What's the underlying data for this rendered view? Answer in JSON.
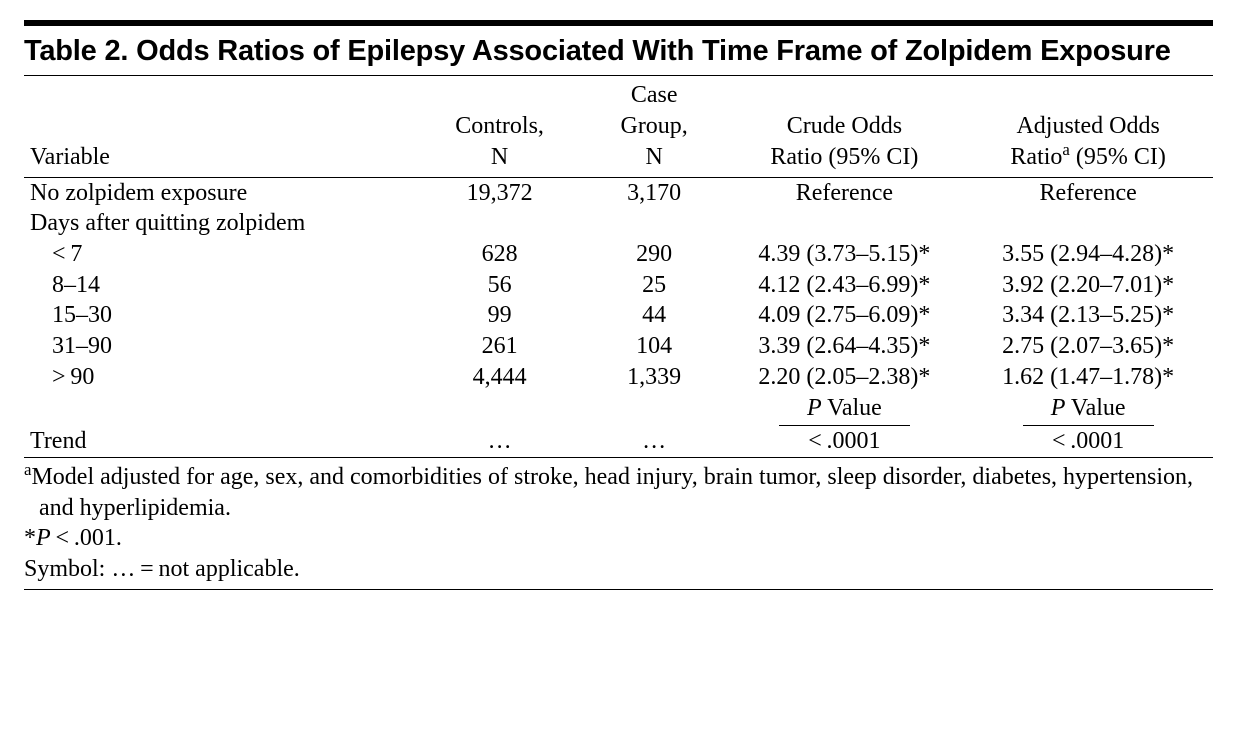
{
  "title": "Table 2. Odds Ratios of Epilepsy Associated With Time Frame of Zolpidem Exposure",
  "columns": {
    "c0": "Variable",
    "c1_line1": "Controls,",
    "c1_line2": "N",
    "c2_line1": "Case",
    "c2_line2": "Group,",
    "c2_line3": "N",
    "c3_line1": "Crude Odds",
    "c3_line2": "Ratio (95% CI)",
    "c4_line1": "Adjusted Odds",
    "c4_line2_prefix": "Ratio",
    "c4_line2_sup": "a",
    "c4_line2_suffix": " (95% CI)"
  },
  "rows": {
    "r0": {
      "label": "No zolpidem exposure",
      "controls": "19,372",
      "case": "3,170",
      "crude": "Reference",
      "adj": "Reference"
    },
    "grouplabel": "Days after quitting zolpidem",
    "r1": {
      "label": "< 7",
      "controls": "628",
      "case": "290",
      "crude": "4.39 (3.73–5.15)*",
      "adj": "3.55 (2.94–4.28)*"
    },
    "r2": {
      "label": "8–14",
      "controls": "56",
      "case": "25",
      "crude": "4.12 (2.43–6.99)*",
      "adj": "3.92 (2.20–7.01)*"
    },
    "r3": {
      "label": "15–30",
      "controls": "99",
      "case": "44",
      "crude": "4.09 (2.75–6.09)*",
      "adj": "3.34 (2.13–5.25)*"
    },
    "r4": {
      "label": "31–90",
      "controls": "261",
      "case": "104",
      "crude": "3.39 (2.64–4.35)*",
      "adj": "2.75 (2.07–3.65)*"
    },
    "r5": {
      "label": "> 90",
      "controls": "4,444",
      "case": "1,339",
      "crude": "2.20 (2.05–2.38)*",
      "adj": "1.62 (1.47–1.78)*"
    },
    "pvalue_label_P": "P",
    "pvalue_label_word": " Value",
    "trend": {
      "label": "Trend",
      "controls": "…",
      "case": "…",
      "crude": "< .0001",
      "adj": "< .0001"
    }
  },
  "footnotes": {
    "a_sup": "a",
    "a_text": "Model adjusted for age, sex, and comorbidities of stroke, head injury, brain tumor, sleep disorder, diabetes, hypertension, and hyperlipidemia.",
    "star_prefix": "*",
    "star_P": "P",
    "star_rest": " < .001.",
    "symbol": "Symbol: … = not applicable."
  },
  "colwidths": {
    "c0": "33%",
    "c1": "14%",
    "c2": "12%",
    "c3": "20%",
    "c4": "21%"
  }
}
